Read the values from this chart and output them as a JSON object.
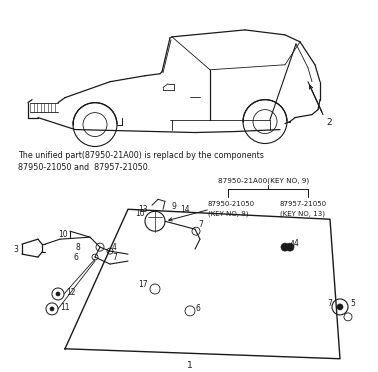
{
  "bg_color": "#ffffff",
  "line_color": "#1a1a1a",
  "text_color": "#1a1a1a",
  "note_line1": "The unified part(87950-21A00) is replacd by the components",
  "note_line2": "87950-21050 and  87957-21050.",
  "label_top": "87950-21A00(KEY NO, 9)",
  "label_left_1": "87950-21050",
  "label_left_2": "(KEY NO, 9)",
  "label_right_1": "87957-21050",
  "label_right_2": "(KEY NO, 13)",
  "figsize": [
    3.78,
    3.72
  ],
  "dpi": 100
}
